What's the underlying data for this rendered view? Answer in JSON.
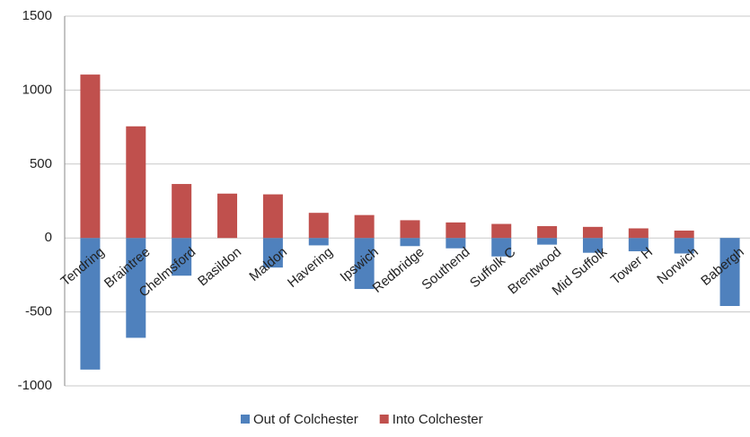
{
  "chart_data": {
    "type": "bar",
    "stacked": true,
    "categories": [
      "Tendring",
      "Braintree",
      "Chelmsford",
      "Basildon",
      "Maldon",
      "Havering",
      "Ipswich",
      "Redbridge",
      "Southend",
      "Suffolk C",
      "Brentwood",
      "Mid Suffolk",
      "Tower H",
      "Norwich",
      "Babergh"
    ],
    "series": [
      {
        "name": "Out of Colchester",
        "color": "#4f81bd",
        "values": [
          -890,
          -675,
          -255,
          0,
          -200,
          -50,
          -345,
          -55,
          -70,
          -125,
          -45,
          -100,
          -90,
          -105,
          -460
        ]
      },
      {
        "name": "Into Colchester",
        "color": "#c0504d",
        "values": [
          1105,
          755,
          365,
          300,
          295,
          170,
          155,
          120,
          105,
          95,
          80,
          75,
          65,
          50,
          0
        ]
      }
    ],
    "ylim": [
      -1000,
      1500
    ],
    "yticks": [
      -1000,
      -500,
      0,
      500,
      1000,
      1500
    ],
    "grid": true,
    "legend": "bottom"
  }
}
